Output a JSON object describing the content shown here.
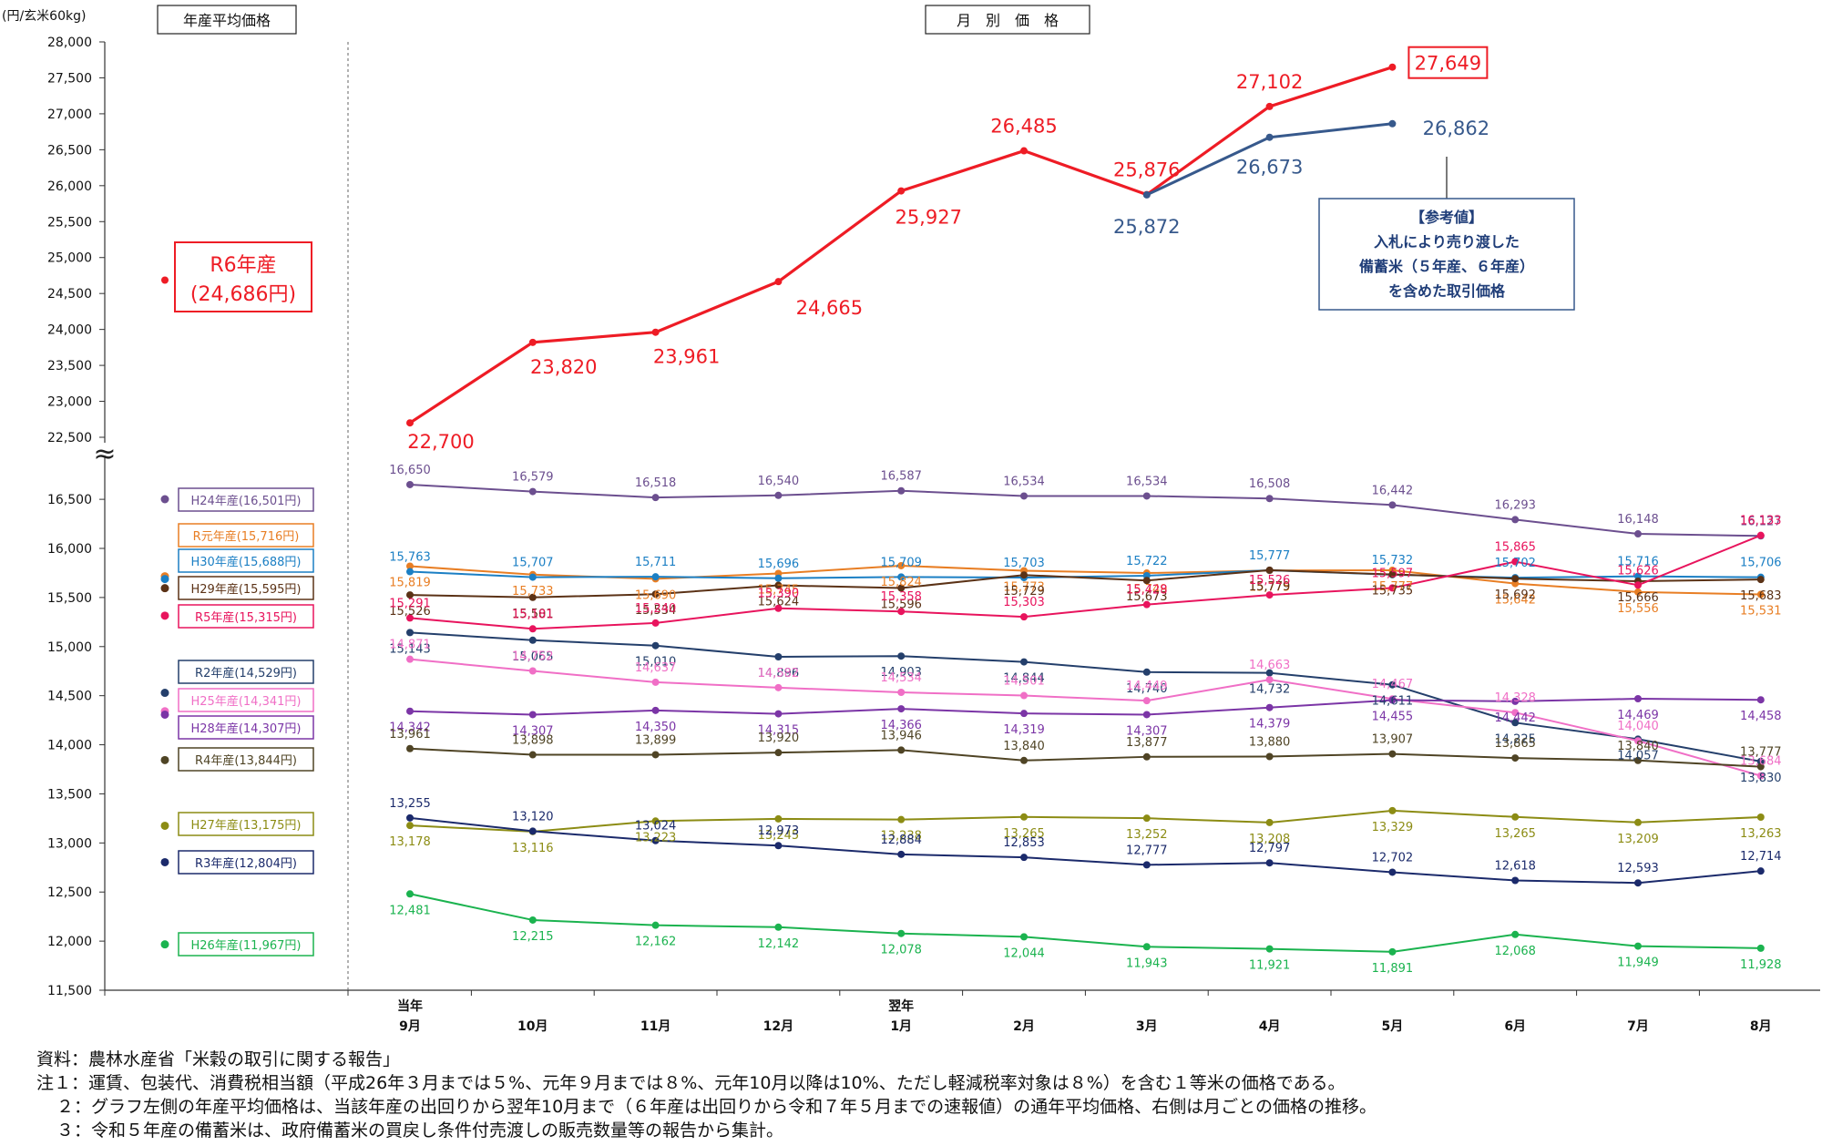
{
  "unit_label": "(円/玄米60kg)",
  "left_header": "年産平均価格",
  "right_header": "月　別　価　格",
  "break_mark": "≈",
  "chart_data": {
    "type": "line",
    "y_ticks_upper": [
      "28,000",
      "27,500",
      "27,000",
      "26,500",
      "26,000",
      "25,500",
      "25,000",
      "24,500",
      "24,000",
      "23,500",
      "23,000",
      "22,500"
    ],
    "y_ticks_lower": [
      "16,500",
      "16,000",
      "15,500",
      "15,000",
      "14,500",
      "14,000",
      "13,500",
      "13,000",
      "12,500",
      "12,000",
      "11,500"
    ],
    "ylim_upper": [
      22500,
      28000
    ],
    "ylim_lower": [
      11500,
      16900
    ],
    "x_upper": [
      "当年",
      "",
      "",
      "",
      "翌年",
      "",
      "",
      "",
      "",
      "",
      "",
      ""
    ],
    "x_labels": [
      "9月",
      "10月",
      "11月",
      "12月",
      "1月",
      "2月",
      "3月",
      "4月",
      "5月",
      "6月",
      "7月",
      "8月"
    ],
    "main_series": {
      "name": "R6年産",
      "avg_label": "R6年産",
      "avg_value_label": "(24,686円)",
      "avg": 24686,
      "color": "#ee1c25",
      "values": [
        22700,
        23820,
        23961,
        24665,
        25927,
        26485,
        25876,
        27102,
        27649
      ],
      "labels": [
        "22,700",
        "23,820",
        "23,961",
        "24,665",
        "25,927",
        "26,485",
        "25,876",
        "27,102",
        "27,649"
      ]
    },
    "ref_series": {
      "color": "#37598c",
      "values": [
        null,
        null,
        null,
        null,
        null,
        null,
        25872,
        26673,
        26862
      ],
      "labels": [
        "",
        "",
        "",
        "",
        "",
        "",
        "25,872",
        "26,673",
        "26,862"
      ]
    },
    "ref_box": {
      "lines": [
        "【参考値】",
        "入札により売り渡した",
        "備蓄米（５年産、６年産）",
        "を含めた取引価格"
      ]
    },
    "series": [
      {
        "name": "H24年産",
        "avg_label": "H24年産(16,501円)",
        "avg": 16501,
        "color": "#6c4f8f",
        "values": [
          16650,
          16579,
          16518,
          16540,
          16587,
          16534,
          16534,
          16508,
          16442,
          16293,
          16148,
          16127
        ],
        "labels": [
          "16,650",
          "16,579",
          "16,518",
          "16,540",
          "16,587",
          "16,534",
          "16,534",
          "16,508",
          "16,442",
          "16,293",
          "16,148",
          "16,127"
        ]
      },
      {
        "name": "R元年産",
        "avg_label": "R元年産(15,716円)",
        "avg": 15716,
        "color": "#e87e24",
        "values": [
          15819,
          15733,
          15690,
          15745,
          15824,
          15773,
          15749,
          15775,
          15777,
          15642,
          15556,
          15531
        ],
        "labels": [
          "15,819",
          "15,733",
          "15,690",
          "15,745",
          "15,824",
          "15,773",
          "15,749",
          "15,775",
          "15,777",
          "15,642",
          "15,556",
          "15,531"
        ]
      },
      {
        "name": "H30年産",
        "avg_label": "H30年産(15,688円)",
        "avg": 15688,
        "color": "#1b7fc4",
        "values": [
          15763,
          15707,
          15711,
          15696,
          15709,
          15703,
          15722,
          15777,
          15732,
          15702,
          15716,
          15706
        ],
        "labels": [
          "15,763",
          "15,707",
          "15,711",
          "15,696",
          "15,709",
          "15,703",
          "15,722",
          "15,777",
          "15,732",
          "15,702",
          "15,716",
          "15,706"
        ]
      },
      {
        "name": "H29年産",
        "avg_label": "H29年産(15,595円)",
        "avg": 15595,
        "color": "#5b3216",
        "values": [
          15526,
          15501,
          15534,
          15624,
          15596,
          15729,
          15673,
          15779,
          15735,
          15692,
          15666,
          15683
        ],
        "labels": [
          "15,526",
          "15,501",
          "15,534",
          "15,624",
          "15,596",
          "15,729",
          "15,673",
          "15,779",
          "15,735",
          "15,692",
          "15,666",
          "15,683"
        ]
      },
      {
        "name": "R5年産",
        "avg_label": "R5年産(15,315円)",
        "avg": 15315,
        "color": "#e8145d",
        "values": [
          15291,
          15181,
          15240,
          15390,
          15358,
          15303,
          15428,
          15526,
          15597,
          15865,
          15626,
          16133
        ],
        "labels": [
          "15,291",
          "15,181",
          "15,240",
          "15,390",
          "15,358",
          "15,303",
          "15,428",
          "15,526",
          "15,597",
          "15,865",
          "15,626",
          "16,133"
        ]
      },
      {
        "name": "R2年産",
        "avg_label": "R2年産(14,529円)",
        "avg": 14529,
        "color": "#243f6b",
        "values": [
          15143,
          15065,
          15010,
          14896,
          14903,
          14844,
          14740,
          14732,
          14611,
          14225,
          14057,
          13830
        ],
        "labels": [
          "15,143",
          "15,065",
          "15,010",
          "14,896",
          "14,903",
          "14,844",
          "14,740",
          "14,732",
          "14,611",
          "14,225",
          "14,057",
          "13,830"
        ]
      },
      {
        "name": "H25年産",
        "avg_label": "H25年産(14,341円)",
        "avg": 14341,
        "color": "#f06fc6",
        "values": [
          14871,
          14752,
          14637,
          14582,
          14534,
          14501,
          14449,
          14663,
          14467,
          14328,
          14040,
          13684
        ],
        "labels": [
          "14,871",
          "14,752",
          "14,637",
          "14,582",
          "14,534",
          "14,501",
          "14,449",
          "14,663",
          "14,467",
          "14,328",
          "14,040",
          "13,684"
        ]
      },
      {
        "name": "H28年産",
        "avg_label": "H28年産(14,307円)",
        "avg": 14307,
        "color": "#7b35a6",
        "values": [
          14342,
          14307,
          14350,
          14315,
          14366,
          14319,
          14307,
          14379,
          14455,
          14442,
          14469,
          14458
        ],
        "labels": [
          "14,342",
          "14,307",
          "14,350",
          "14,315",
          "14,366",
          "14,319",
          "14,307",
          "14,379",
          "14,455",
          "14,442",
          "14,469",
          "14,458"
        ]
      },
      {
        "name": "R4年産",
        "avg_label": "R4年産(13,844円)",
        "avg": 13844,
        "color": "#4f4425",
        "values": [
          13961,
          13898,
          13899,
          13920,
          13946,
          13840,
          13877,
          13880,
          13907,
          13865,
          13840,
          13777
        ],
        "labels": [
          "13,961",
          "13,898",
          "13,899",
          "13,920",
          "13,946",
          "13,840",
          "13,877",
          "13,880",
          "13,907",
          "13,865",
          "13,840",
          "13,777"
        ]
      },
      {
        "name": "H27年産",
        "avg_label": "H27年産(13,175円)",
        "avg": 13175,
        "color": "#8c8c14",
        "values": [
          13178,
          13116,
          13223,
          13245,
          13238,
          13265,
          13252,
          13208,
          13329,
          13265,
          13209,
          13263
        ],
        "labels": [
          "13,178",
          "13,116",
          "13,223",
          "13,245",
          "13,238",
          "13,265",
          "13,252",
          "13,208",
          "13,329",
          "13,265",
          "13,209",
          "13,263"
        ]
      },
      {
        "name": "R3年産",
        "avg_label": "R3年産(12,804円)",
        "avg": 12804,
        "color": "#1b2a6b",
        "values": [
          13255,
          13120,
          13024,
          12973,
          12884,
          12853,
          12777,
          12797,
          12702,
          12618,
          12593,
          12714
        ],
        "labels": [
          "13,255",
          "13,120",
          "13,024",
          "12,973",
          "12,884",
          "12,853",
          "12,777",
          "12,797",
          "12,702",
          "12,618",
          "12,593",
          "12,714"
        ]
      },
      {
        "name": "H26年産",
        "avg_label": "H26年産(11,967円)",
        "avg": 11967,
        "color": "#1bb34f",
        "values": [
          12481,
          12215,
          12162,
          12142,
          12078,
          12044,
          11943,
          11921,
          11891,
          12068,
          11949,
          11928
        ],
        "labels": [
          "12,481",
          "12,215",
          "12,162",
          "12,142",
          "12,078",
          "12,044",
          "11,943",
          "11,921",
          "11,891",
          "12,068",
          "11,949",
          "11,928"
        ]
      }
    ]
  },
  "notes": {
    "source": "資料：農林水産省「米穀の取引に関する報告」",
    "n1": "注１：運賃、包装代、消費税相当額（平成26年３月までは５%、元年９月までは８%、元年10月以降は10%、ただし軽減税率対象は８%）を含む１等米の価格である。",
    "n2": "２：グラフ左側の年産平均価格は、当該年産の出回りから翌年10月まで（６年産は出回りから令和７年５月までの速報値）の通年平均価格、右側は月ごとの価格の推移。",
    "n3": "３：令和５年産の備蓄米は、政府備蓄米の買戻し条件付売渡しの販売数量等の報告から集計。"
  }
}
